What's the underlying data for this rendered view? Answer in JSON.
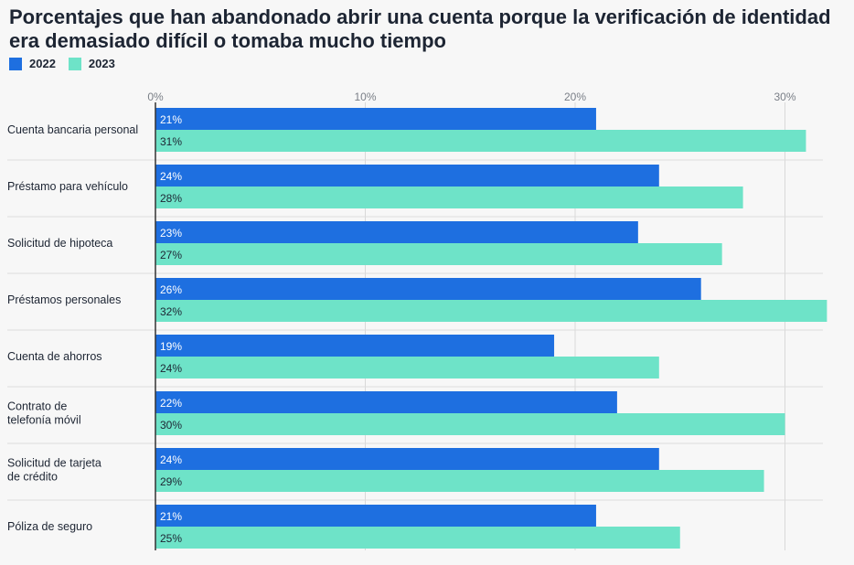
{
  "chart_data": {
    "type": "bar",
    "orientation": "horizontal",
    "title": "Porcentajes que han abandonado abrir una cuenta porque la verificación de identidad era demasiado difícil o tomaba mucho tiempo",
    "categories": [
      "Cuenta bancaria personal",
      "Préstamo para vehículo",
      "Solicitud de hipoteca",
      "Préstamos personales",
      "Cuenta de ahorros",
      "Contrato de telefonía móvil",
      "Solicitud de tarjeta de crédito",
      "Póliza de seguro"
    ],
    "category_lines": [
      [
        "Cuenta bancaria personal"
      ],
      [
        "Préstamo para vehículo"
      ],
      [
        "Solicitud de hipoteca"
      ],
      [
        "Préstamos personales"
      ],
      [
        "Cuenta de ahorros"
      ],
      [
        "Contrato de",
        "telefonía móvil"
      ],
      [
        "Solicitud de tarjeta",
        "de crédito"
      ],
      [
        "Póliza de seguro"
      ]
    ],
    "series": [
      {
        "name": "2022",
        "color": "#1e6fe0",
        "label_color": "#ffffff",
        "values": [
          21,
          24,
          23,
          26,
          19,
          22,
          24,
          21
        ],
        "labels": [
          "21%",
          "24%",
          "23%",
          "26%",
          "19%",
          "22%",
          "24%",
          "21%"
        ]
      },
      {
        "name": "2023",
        "color": "#6ee3c8",
        "label_color": "#1d2533",
        "values": [
          31,
          28,
          27,
          32,
          24,
          30,
          29,
          25
        ],
        "labels": [
          "31%",
          "28%",
          "27%",
          "32%",
          "24%",
          "30%",
          "29%",
          "25%"
        ]
      }
    ],
    "xticks": [
      0,
      10,
      20,
      30
    ],
    "xtick_labels": [
      "0%",
      "10%",
      "20%",
      "30%"
    ],
    "xlim": [
      0,
      32
    ],
    "xlabel": "",
    "ylabel": "",
    "legend": "top-left",
    "grid": true
  }
}
